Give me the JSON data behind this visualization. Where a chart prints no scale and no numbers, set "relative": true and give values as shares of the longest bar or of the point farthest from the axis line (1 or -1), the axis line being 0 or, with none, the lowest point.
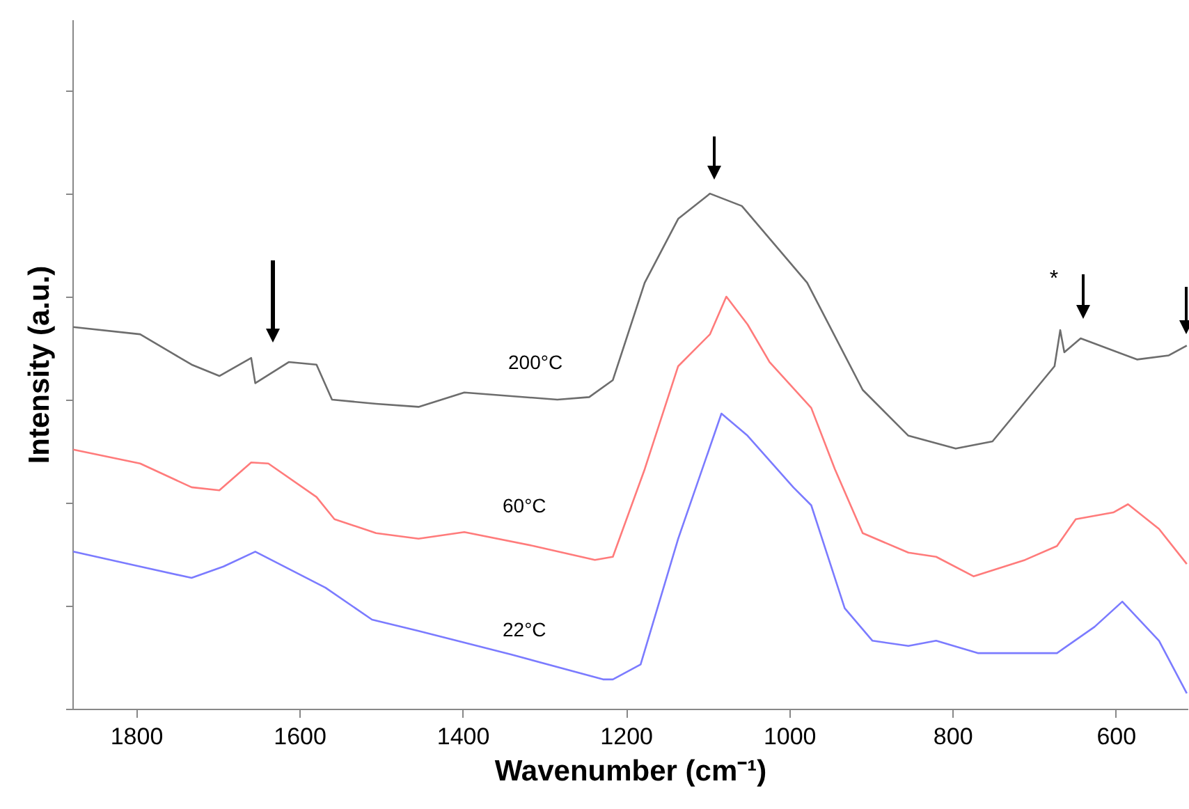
{
  "chart_data": {
    "type": "line",
    "relative": true,
    "xlabel": "Wavenumber (cm⁻¹)",
    "ylabel": "Intensity (a.u.)",
    "xlim": [
      1878,
      512
    ],
    "xticks": [
      1800,
      1600,
      1400,
      1200,
      1000,
      800,
      600
    ],
    "tick_labels": "x",
    "annotations": [
      "*"
    ],
    "series": [
      {
        "name": "200°C",
        "color": "#6d6d6d",
        "x": [
          1877,
          1795,
          1732,
          1698,
          1659,
          1654,
          1613,
          1579,
          1560,
          1506,
          1454,
          1398,
          1284,
          1245,
          1216,
          1177,
          1136,
          1097,
          1058,
          978,
          910,
          854,
          796,
          751,
          675,
          668,
          663,
          643,
          574,
          535,
          513
        ],
        "values": [
          0.741,
          0.727,
          0.668,
          0.646,
          0.681,
          0.632,
          0.673,
          0.668,
          0.6,
          0.592,
          0.586,
          0.614,
          0.6,
          0.605,
          0.638,
          0.827,
          0.951,
          1.0,
          0.976,
          0.827,
          0.619,
          0.53,
          0.505,
          0.519,
          0.665,
          0.735,
          0.692,
          0.719,
          0.678,
          0.686,
          0.705
        ]
      },
      {
        "name": "60°C",
        "color": "#ff7b7b",
        "x": [
          1877,
          1795,
          1732,
          1698,
          1659,
          1638,
          1579,
          1557,
          1506,
          1454,
          1398,
          1313,
          1238,
          1216,
          1177,
          1136,
          1097,
          1077,
          1051,
          1024,
          973,
          944,
          910,
          854,
          820,
          774,
          711,
          672,
          649,
          603,
          585,
          547,
          513
        ],
        "values": [
          0.503,
          0.476,
          0.43,
          0.424,
          0.478,
          0.476,
          0.411,
          0.368,
          0.341,
          0.33,
          0.343,
          0.316,
          0.289,
          0.295,
          0.465,
          0.665,
          0.727,
          0.8,
          0.746,
          0.673,
          0.584,
          0.465,
          0.341,
          0.303,
          0.295,
          0.257,
          0.289,
          0.316,
          0.368,
          0.381,
          0.397,
          0.349,
          0.281
        ]
      },
      {
        "name": "22°C",
        "color": "#7b7bff",
        "x": [
          1877,
          1795,
          1732,
          1693,
          1654,
          1568,
          1511,
          1454,
          1340,
          1228,
          1216,
          1182,
          1136,
          1083,
          1051,
          995,
          973,
          932,
          898,
          854,
          820,
          769,
          672,
          626,
          592,
          547,
          513
        ],
        "values": [
          0.305,
          0.276,
          0.254,
          0.276,
          0.305,
          0.235,
          0.173,
          0.151,
          0.105,
          0.057,
          0.057,
          0.086,
          0.33,
          0.573,
          0.53,
          0.43,
          0.395,
          0.195,
          0.132,
          0.122,
          0.132,
          0.108,
          0.108,
          0.159,
          0.208,
          0.132,
          0.03
        ]
      }
    ]
  }
}
